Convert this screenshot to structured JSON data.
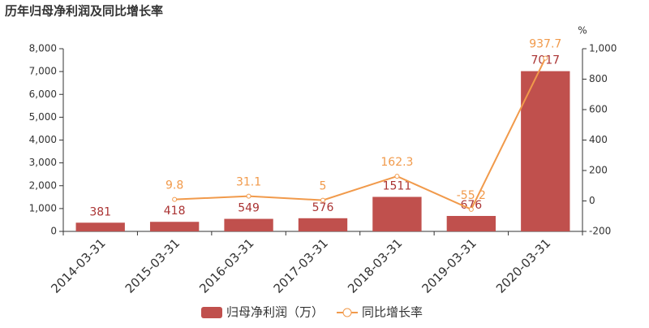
{
  "chart_data": {
    "type": "bar-line",
    "title": "历年归母净利润及同比增长率",
    "categories": [
      "2014-03-31",
      "2015-03-31",
      "2016-03-31",
      "2017-03-31",
      "2018-03-31",
      "2019-03-31",
      "2020-03-31"
    ],
    "series": [
      {
        "name": "归母净利润（万）",
        "type": "bar",
        "color": "#c0504d",
        "values": [
          381,
          418,
          549,
          576,
          1511,
          676,
          7017
        ]
      },
      {
        "name": "同比增长率",
        "type": "line",
        "axis": "y2",
        "color": "#f19a4b",
        "values": [
          null,
          9.8,
          31.1,
          5,
          162.3,
          -55.2,
          937.7
        ]
      }
    ],
    "ylim": [
      0,
      8000
    ],
    "yticks": [
      0,
      {
        "value": 1000,
        "label": "1,000"
      },
      {
        "value": 2000,
        "label": "2,000"
      },
      {
        "value": 3000,
        "label": "3,000"
      },
      {
        "value": 4000,
        "label": "4,000"
      },
      {
        "value": 5000,
        "label": "5,000"
      },
      {
        "value": 6000,
        "label": "6,000"
      },
      {
        "value": 7000,
        "label": "7,000"
      },
      {
        "value": 8000,
        "label": "8,000"
      }
    ],
    "y2label": "%",
    "y2lim": [
      -200,
      1000
    ],
    "y2ticks": [
      -200,
      0,
      200,
      400,
      600,
      800,
      {
        "value": 1000,
        "label": "1,000"
      }
    ],
    "grid": false,
    "legend": "bottom"
  }
}
